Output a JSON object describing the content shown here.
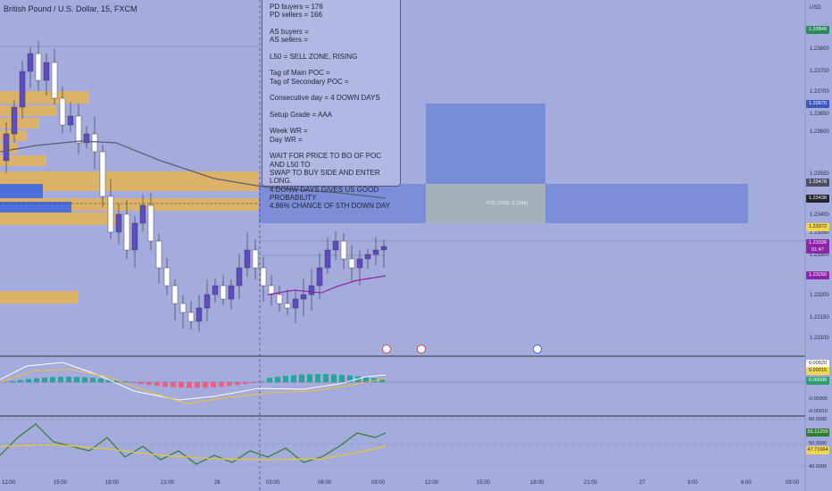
{
  "header": {
    "title": "British Pound / U.S. Dollar, 15, FXCM",
    "currency": "USD"
  },
  "note": {
    "lines": [
      "PD buyers = 176\nPD sellers = 166",
      "AS buyers =\nAS sellers =",
      "L50 = SELL ZONE, RISING",
      "Tag of Main POC =\nTag of Secondary POC =",
      "Consecutive day = 4 DOWN DAYS",
      "Setup Grade = AAA",
      "Week WR =\nDay WR  =",
      "WAIT FOR PRICE TO BO OF POC AND L50 TO\nSWAP TO BUY SIDE AND ENTER LONG.\n4 DONW DAYS GIVES US GOOD PROBABILITY\n4.86% CHANCE OF 5TH DOWN DAY"
    ]
  },
  "poc_zone_label": "POC ZONE (1.2346)",
  "price_axis": [
    "1.23800",
    "1.23750",
    "1.23700",
    "1.23650",
    "1.23600",
    "1.23550",
    "1.23400",
    "1.23350",
    "1.23300",
    "1.23200",
    "1.23150",
    "1.23100"
  ],
  "price_tags": [
    {
      "text": "1.23849",
      "color": "#2a8a5a"
    },
    {
      "text": "1.23670",
      "color": "#3d5ab8"
    },
    {
      "text": "1.23478",
      "color": "#4b4f62"
    },
    {
      "text": "1.23438",
      "color": "#22252f"
    },
    {
      "text": "1.23372",
      "color": "#f2d64b"
    },
    {
      "text": "1.23336\n01:47",
      "color": "#8e24aa"
    },
    {
      "text": "1.23250",
      "color": "#8e24aa"
    }
  ],
  "macd_axis": [
    "0.00020",
    "0.00015",
    "0.00008",
    "-0.00005",
    "-0.00010"
  ],
  "rsi_axis": [
    "60.0000",
    "55.11259",
    "50.0000",
    "47.71664",
    "40.0000"
  ],
  "time_axis": [
    "12:00",
    "15:00",
    "18:00",
    "21:00",
    "26",
    "03:00",
    "06:00",
    "09:00",
    "12:00",
    "15:00",
    "18:00",
    "21:00",
    "27",
    "3:00",
    "6:00",
    "09:00"
  ],
  "colors": {
    "bull": "#5e4cc4",
    "bear": "#ffffff",
    "bg": "#a4abdd",
    "volume": "#e8b44a",
    "poc": "#6b82d4",
    "ma": "#5b5d6d"
  }
}
